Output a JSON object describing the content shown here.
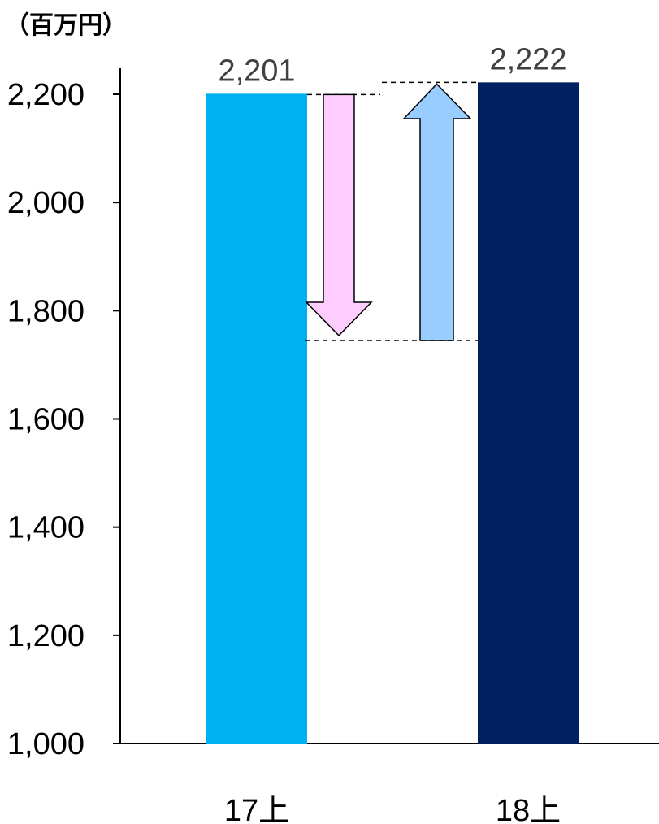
{
  "chart_data": {
    "type": "bar",
    "unit_label": "（百万円）",
    "categories": [
      "17上",
      "18上"
    ],
    "values": [
      2201,
      2222
    ],
    "value_labels": [
      "2,201",
      "2,222"
    ],
    "ylim": [
      1000,
      2200
    ],
    "yticks": [
      1000,
      1200,
      1400,
      1600,
      1800,
      2000,
      2200
    ],
    "ytick_labels": [
      "1,000",
      "1,200",
      "1,400",
      "1,600",
      "1,800",
      "2,000",
      "2,200"
    ],
    "bar_colors": [
      "#00b0f0",
      "#002060"
    ],
    "grid": false,
    "legend": "none",
    "bridge": {
      "low_level": 1745,
      "down_arrow_color": "#ffccff",
      "up_arrow_color": "#99ccff"
    }
  }
}
